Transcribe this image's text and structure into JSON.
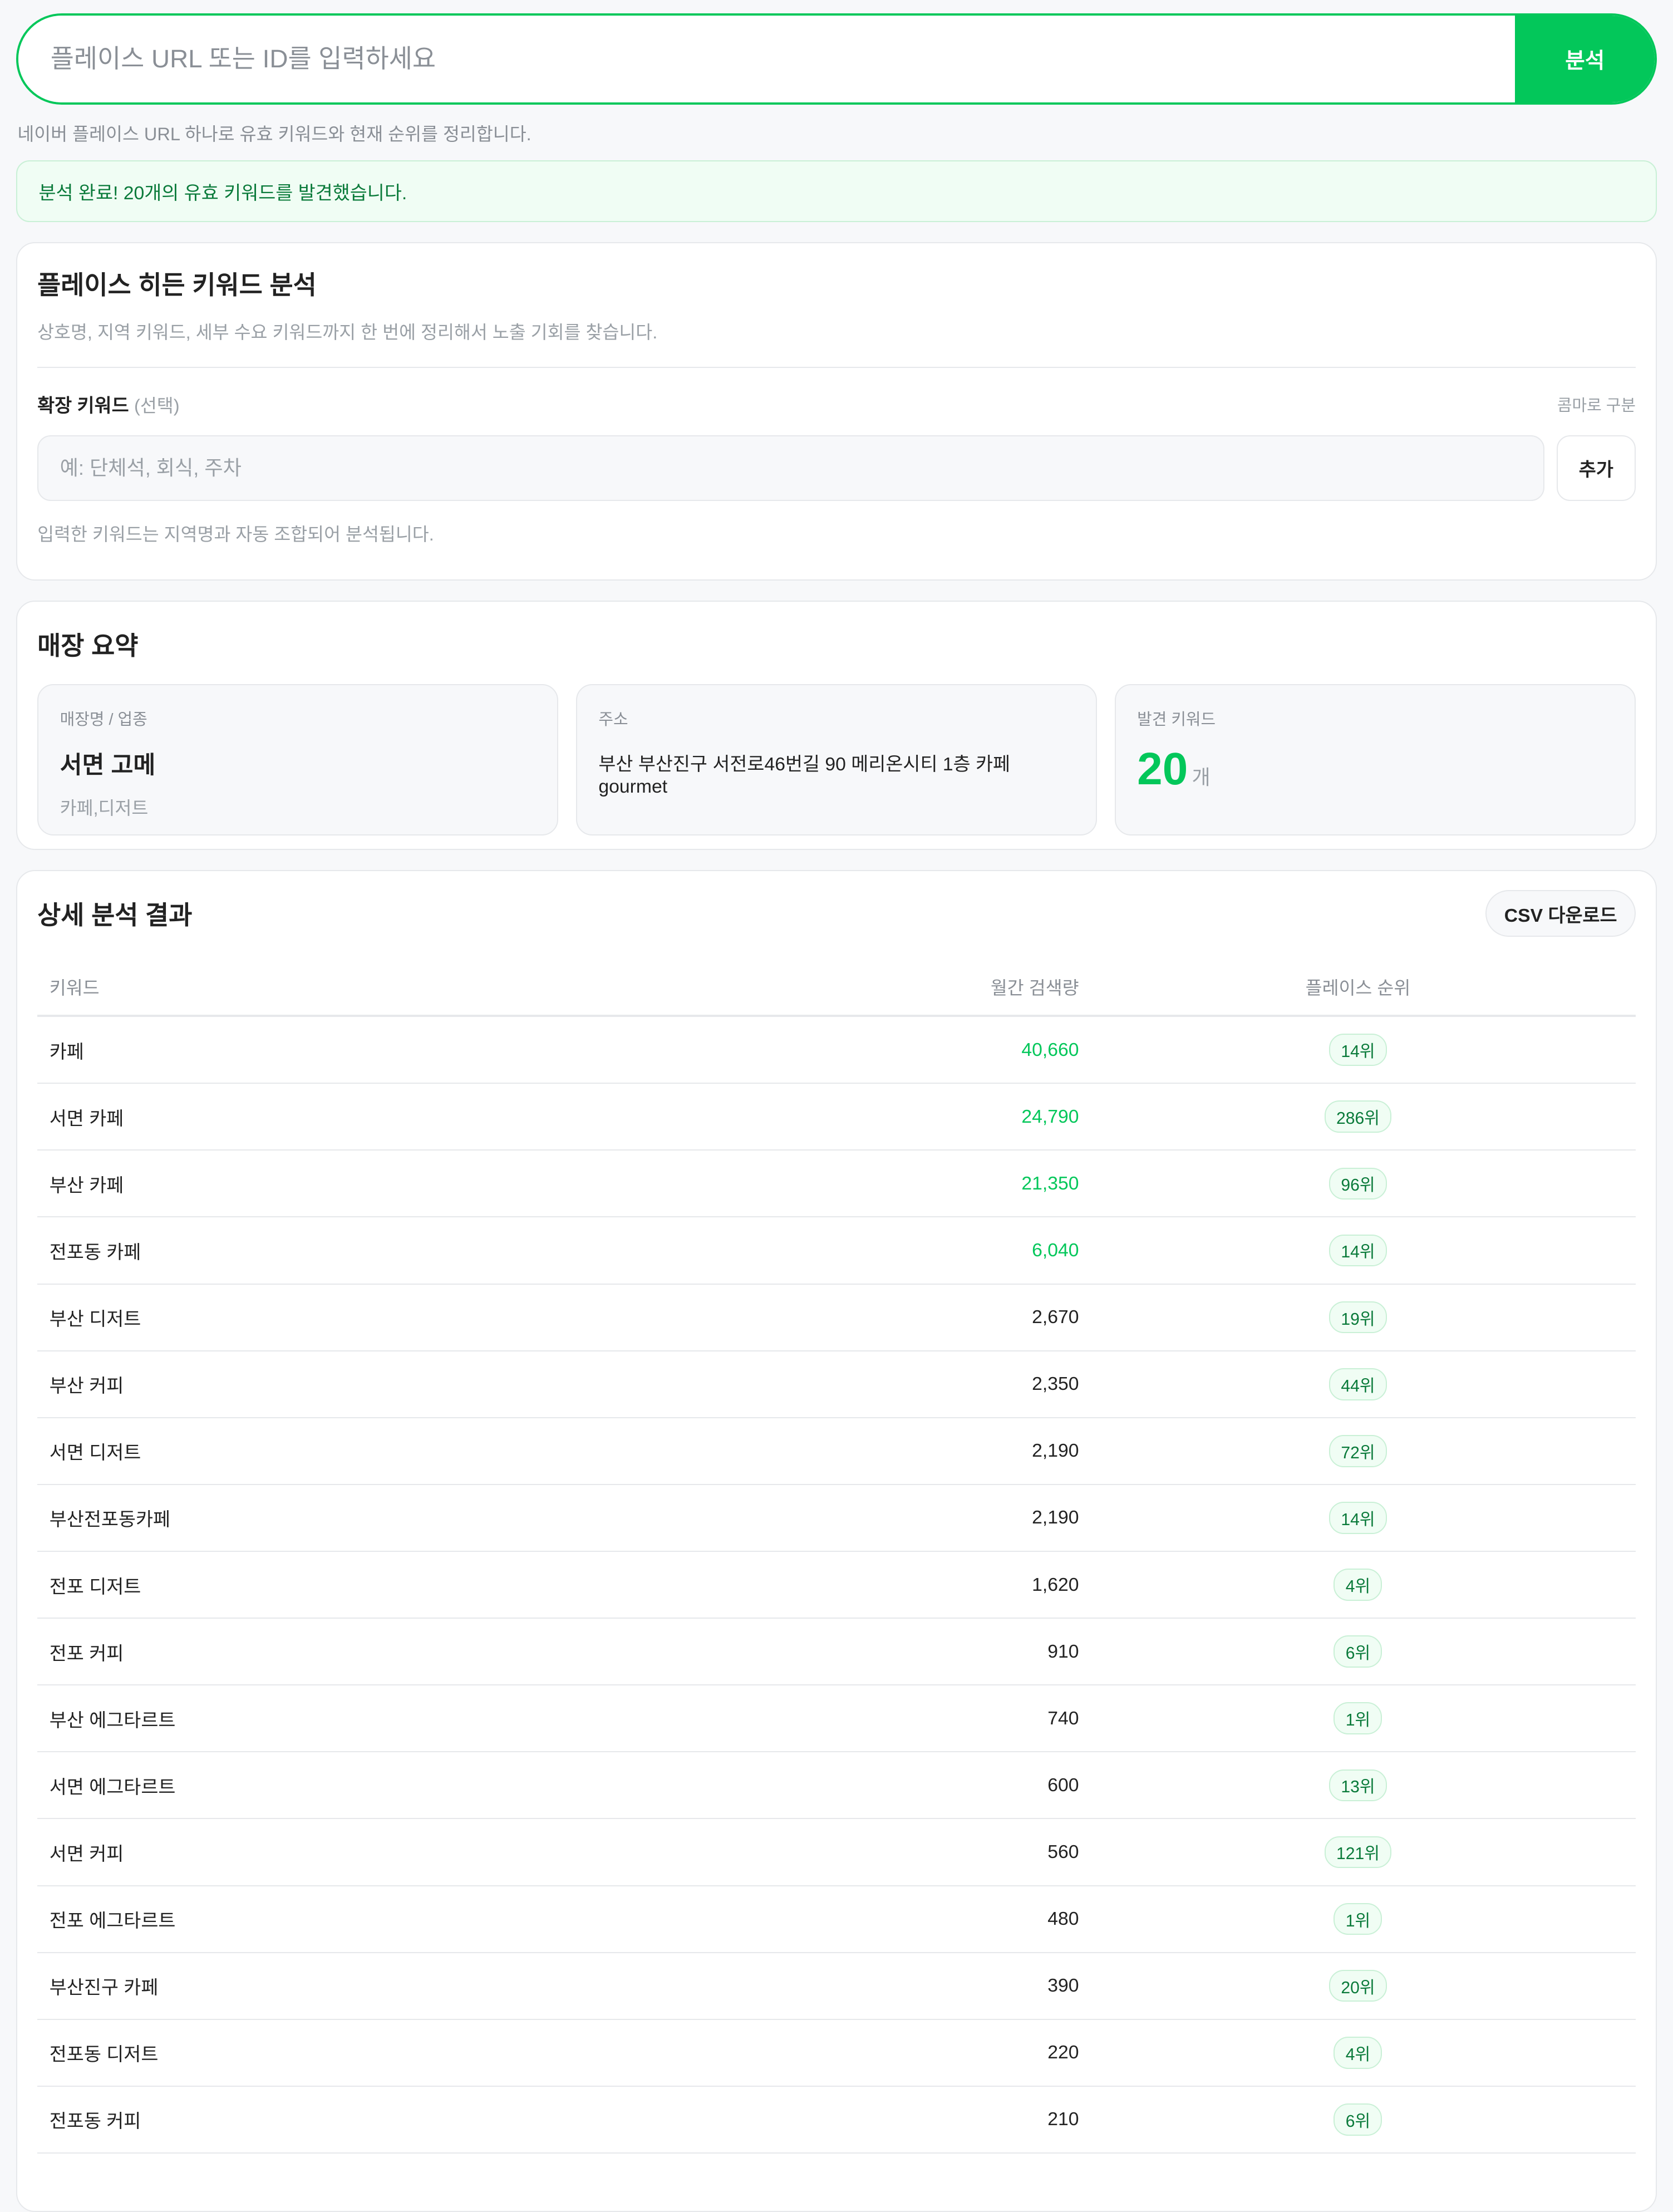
{
  "search": {
    "placeholder": "플레이스 URL 또는 ID를 입력하세요",
    "button": "분석",
    "helper": "네이버 플레이스 URL 하나로 유효 키워드와 현재 순위를 정리합니다."
  },
  "alert": {
    "message": "분석 완료! 20개의 유효 키워드를 발견했습니다."
  },
  "analysis": {
    "title": "플레이스 히든 키워드 분석",
    "desc": "상호명, 지역 키워드, 세부 수요 키워드까지 한 번에 정리해서 노출 기회를 찾습니다.",
    "label": "확장 키워드",
    "label_optional": "(선택)",
    "hint": "콤마로 구분",
    "placeholder": "예: 단체석, 회식, 주차",
    "add": "추가",
    "note": "입력한 키워드는 지역명과 자동 조합되어 분석됩니다."
  },
  "summary": {
    "title": "매장 요약",
    "name_label": "매장명 / 업종",
    "name": "서면 고메",
    "category": "카페,디저트",
    "addr_label": "주소",
    "address": "부산 부산진구 서전로46번길 90 메리온시티 1층 카페 gourmet",
    "count_label": "발견 키워드",
    "count": "20",
    "count_unit": "개"
  },
  "results": {
    "title": "상세 분석 결과",
    "csv": "CSV 다운로드",
    "columns": [
      "키워드",
      "월간 검색량",
      "플레이스 순위"
    ],
    "accent": "#03c75a",
    "rows": [
      {
        "keyword": "카페",
        "volume": "40,660",
        "rank": "14위",
        "highlight": true
      },
      {
        "keyword": "서면 카페",
        "volume": "24,790",
        "rank": "286위",
        "highlight": true
      },
      {
        "keyword": "부산 카페",
        "volume": "21,350",
        "rank": "96위",
        "highlight": true
      },
      {
        "keyword": "전포동 카페",
        "volume": "6,040",
        "rank": "14위",
        "highlight": true
      },
      {
        "keyword": "부산 디저트",
        "volume": "2,670",
        "rank": "19위"
      },
      {
        "keyword": "부산 커피",
        "volume": "2,350",
        "rank": "44위"
      },
      {
        "keyword": "서면 디저트",
        "volume": "2,190",
        "rank": "72위"
      },
      {
        "keyword": "부산전포동카페",
        "volume": "2,190",
        "rank": "14위"
      },
      {
        "keyword": "전포 디저트",
        "volume": "1,620",
        "rank": "4위"
      },
      {
        "keyword": "전포 커피",
        "volume": "910",
        "rank": "6위"
      },
      {
        "keyword": "부산 에그타르트",
        "volume": "740",
        "rank": "1위"
      },
      {
        "keyword": "서면 에그타르트",
        "volume": "600",
        "rank": "13위"
      },
      {
        "keyword": "서면 커피",
        "volume": "560",
        "rank": "121위"
      },
      {
        "keyword": "전포 에그타르트",
        "volume": "480",
        "rank": "1위"
      },
      {
        "keyword": "부산진구 카페",
        "volume": "390",
        "rank": "20위"
      },
      {
        "keyword": "전포동 디저트",
        "volume": "220",
        "rank": "4위"
      },
      {
        "keyword": "전포동 커피",
        "volume": "210",
        "rank": "6위"
      }
    ]
  }
}
